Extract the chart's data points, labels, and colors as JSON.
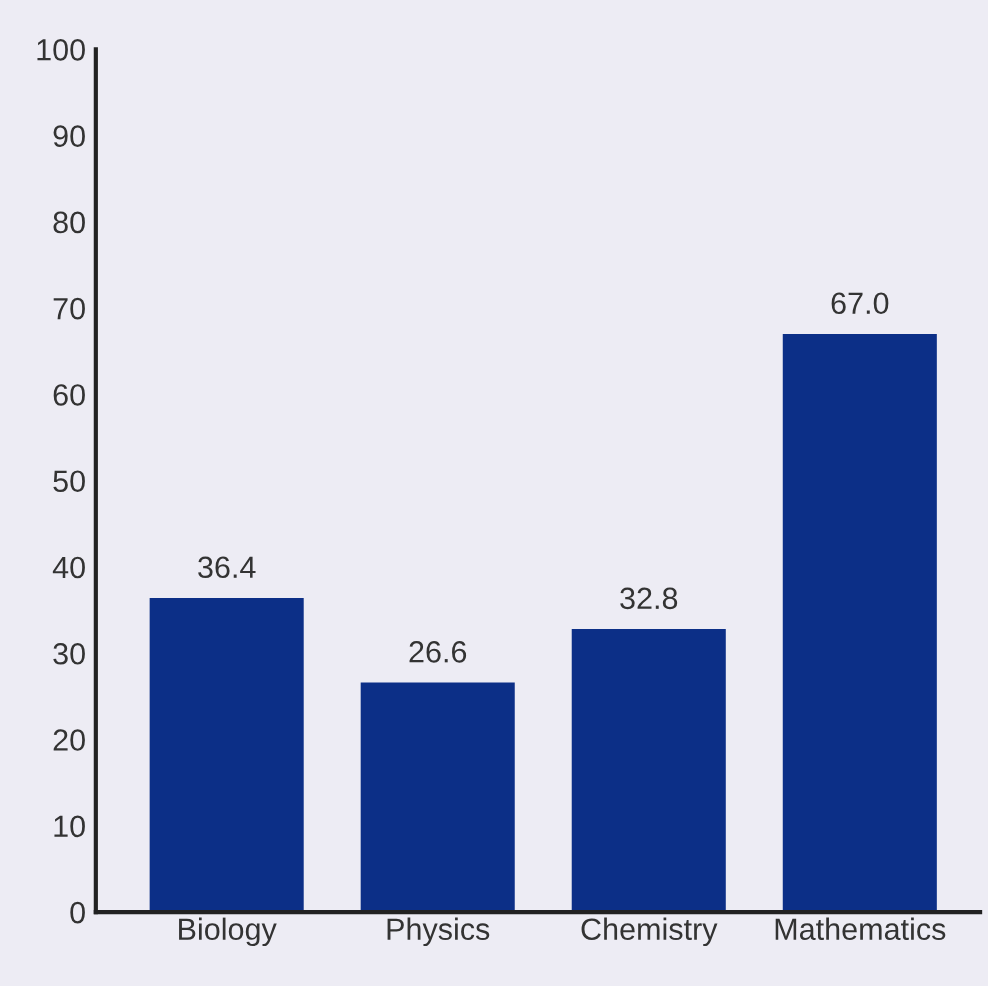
{
  "chart_data": {
    "type": "bar",
    "categories": [
      "Biology",
      "Physics",
      "Chemistry",
      "Mathematics"
    ],
    "values": [
      36.4,
      26.6,
      32.8,
      67.0
    ],
    "value_labels": [
      "36.4",
      "26.6",
      "32.8",
      "67.0"
    ],
    "color": "#0c2f87",
    "ylim": [
      0,
      100
    ],
    "yticks": [
      0,
      10,
      20,
      30,
      40,
      50,
      60,
      70,
      80,
      90,
      100
    ],
    "grid": false,
    "legend": false
  }
}
